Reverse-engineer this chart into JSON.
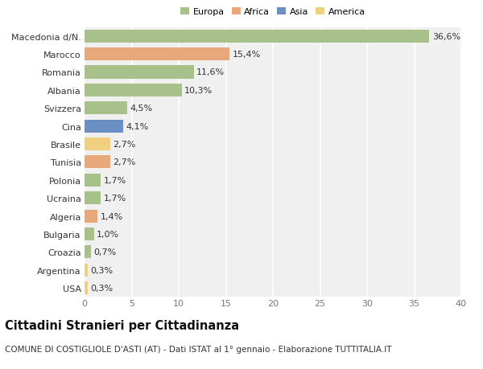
{
  "countries": [
    "Macedonia d/N.",
    "Marocco",
    "Romania",
    "Albania",
    "Svizzera",
    "Cina",
    "Brasile",
    "Tunisia",
    "Polonia",
    "Ucraina",
    "Algeria",
    "Bulgaria",
    "Croazia",
    "Argentina",
    "USA"
  ],
  "values": [
    36.6,
    15.4,
    11.6,
    10.3,
    4.5,
    4.1,
    2.7,
    2.7,
    1.7,
    1.7,
    1.4,
    1.0,
    0.7,
    0.3,
    0.3
  ],
  "labels": [
    "36,6%",
    "15,4%",
    "11,6%",
    "10,3%",
    "4,5%",
    "4,1%",
    "2,7%",
    "2,7%",
    "1,7%",
    "1,7%",
    "1,4%",
    "1,0%",
    "0,7%",
    "0,3%",
    "0,3%"
  ],
  "continents": [
    "Europa",
    "Africa",
    "Europa",
    "Europa",
    "Europa",
    "Asia",
    "America",
    "Africa",
    "Europa",
    "Europa",
    "Africa",
    "Europa",
    "Europa",
    "America",
    "America"
  ],
  "colors": {
    "Europa": "#a8c08a",
    "Africa": "#e8a87c",
    "Asia": "#6b8fc2",
    "America": "#f0d080"
  },
  "legend_order": [
    "Europa",
    "Africa",
    "Asia",
    "America"
  ],
  "xlim": [
    0,
    40
  ],
  "xticks": [
    0,
    5,
    10,
    15,
    20,
    25,
    30,
    35,
    40
  ],
  "title": "Cittadini Stranieri per Cittadinanza",
  "subtitle": "COMUNE DI COSTIGLIOLE D'ASTI (AT) - Dati ISTAT al 1° gennaio - Elaborazione TUTTITALIA.IT",
  "background_color": "#ffffff",
  "plot_bg_color": "#f0f0f0",
  "grid_color": "#ffffff",
  "bar_height": 0.72,
  "label_fontsize": 8.0,
  "tick_fontsize": 8.0,
  "title_fontsize": 10.5,
  "subtitle_fontsize": 7.5
}
